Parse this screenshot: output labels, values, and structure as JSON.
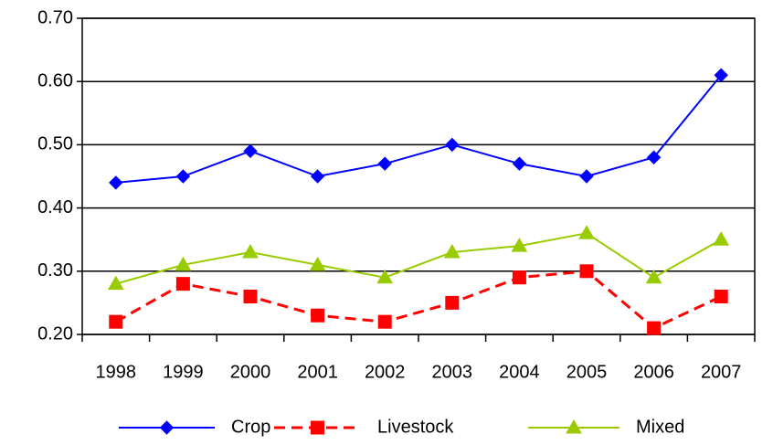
{
  "chart_data": {
    "type": "line",
    "categories": [
      "1998",
      "1999",
      "2000",
      "2001",
      "2002",
      "2003",
      "2004",
      "2005",
      "2006",
      "2007"
    ],
    "series": [
      {
        "name": "Crop",
        "color": "#0000ff",
        "marker": "diamond",
        "dashed": false,
        "values": [
          0.44,
          0.45,
          0.49,
          0.45,
          0.47,
          0.5,
          0.47,
          0.45,
          0.48,
          0.61
        ]
      },
      {
        "name": "Livestock",
        "color": "#ff0000",
        "marker": "square",
        "dashed": true,
        "values": [
          0.22,
          0.28,
          0.26,
          0.23,
          0.22,
          0.25,
          0.29,
          0.3,
          0.21,
          0.26
        ]
      },
      {
        "name": "Mixed",
        "color": "#99cc00",
        "marker": "triangle",
        "dashed": false,
        "values": [
          0.28,
          0.31,
          0.33,
          0.31,
          0.29,
          0.33,
          0.34,
          0.36,
          0.29,
          0.35
        ]
      }
    ],
    "ylim": [
      0.2,
      0.7
    ],
    "yticks": [
      {
        "value": 0.2,
        "label": "0.20"
      },
      {
        "value": 0.3,
        "label": "0.30"
      },
      {
        "value": 0.4,
        "label": "0.40"
      },
      {
        "value": 0.5,
        "label": "0.50"
      },
      {
        "value": 0.6,
        "label": "0.60"
      },
      {
        "value": 0.7,
        "label": "0.70"
      }
    ],
    "grid": true,
    "legend": "bottom"
  }
}
